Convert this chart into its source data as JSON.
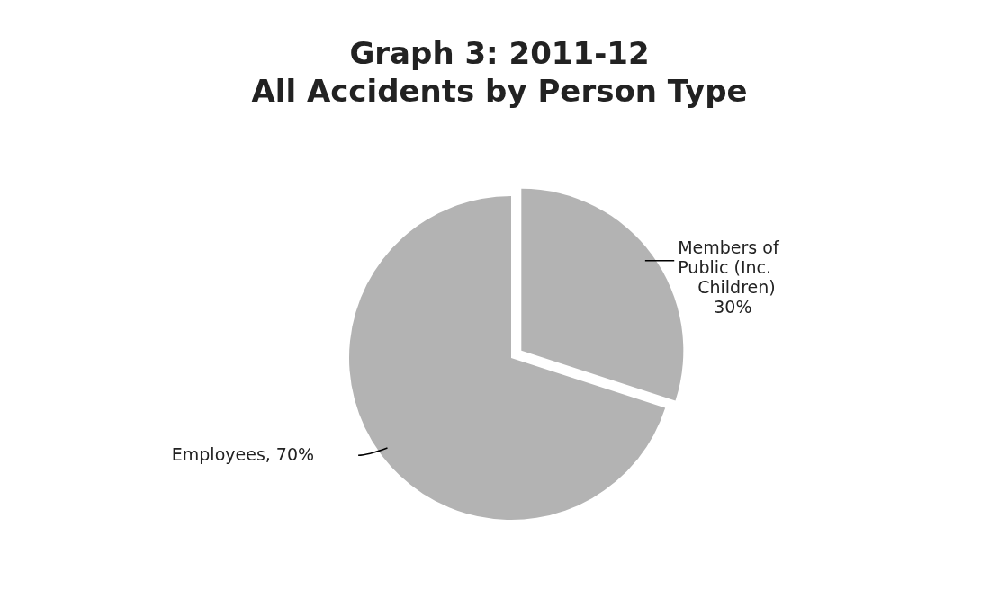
{
  "chart_data": {
    "type": "pie",
    "title": "Graph 3: 2011-12",
    "subtitle": "All Accidents by Person Type",
    "categories": [
      "Members of Public (Inc. Children)",
      "Employees"
    ],
    "values": [
      30,
      70
    ],
    "colors": [
      "#b3b3b3",
      "#b3b3b3"
    ],
    "value_labels": [
      "30%",
      "70%"
    ],
    "legend": false
  }
}
